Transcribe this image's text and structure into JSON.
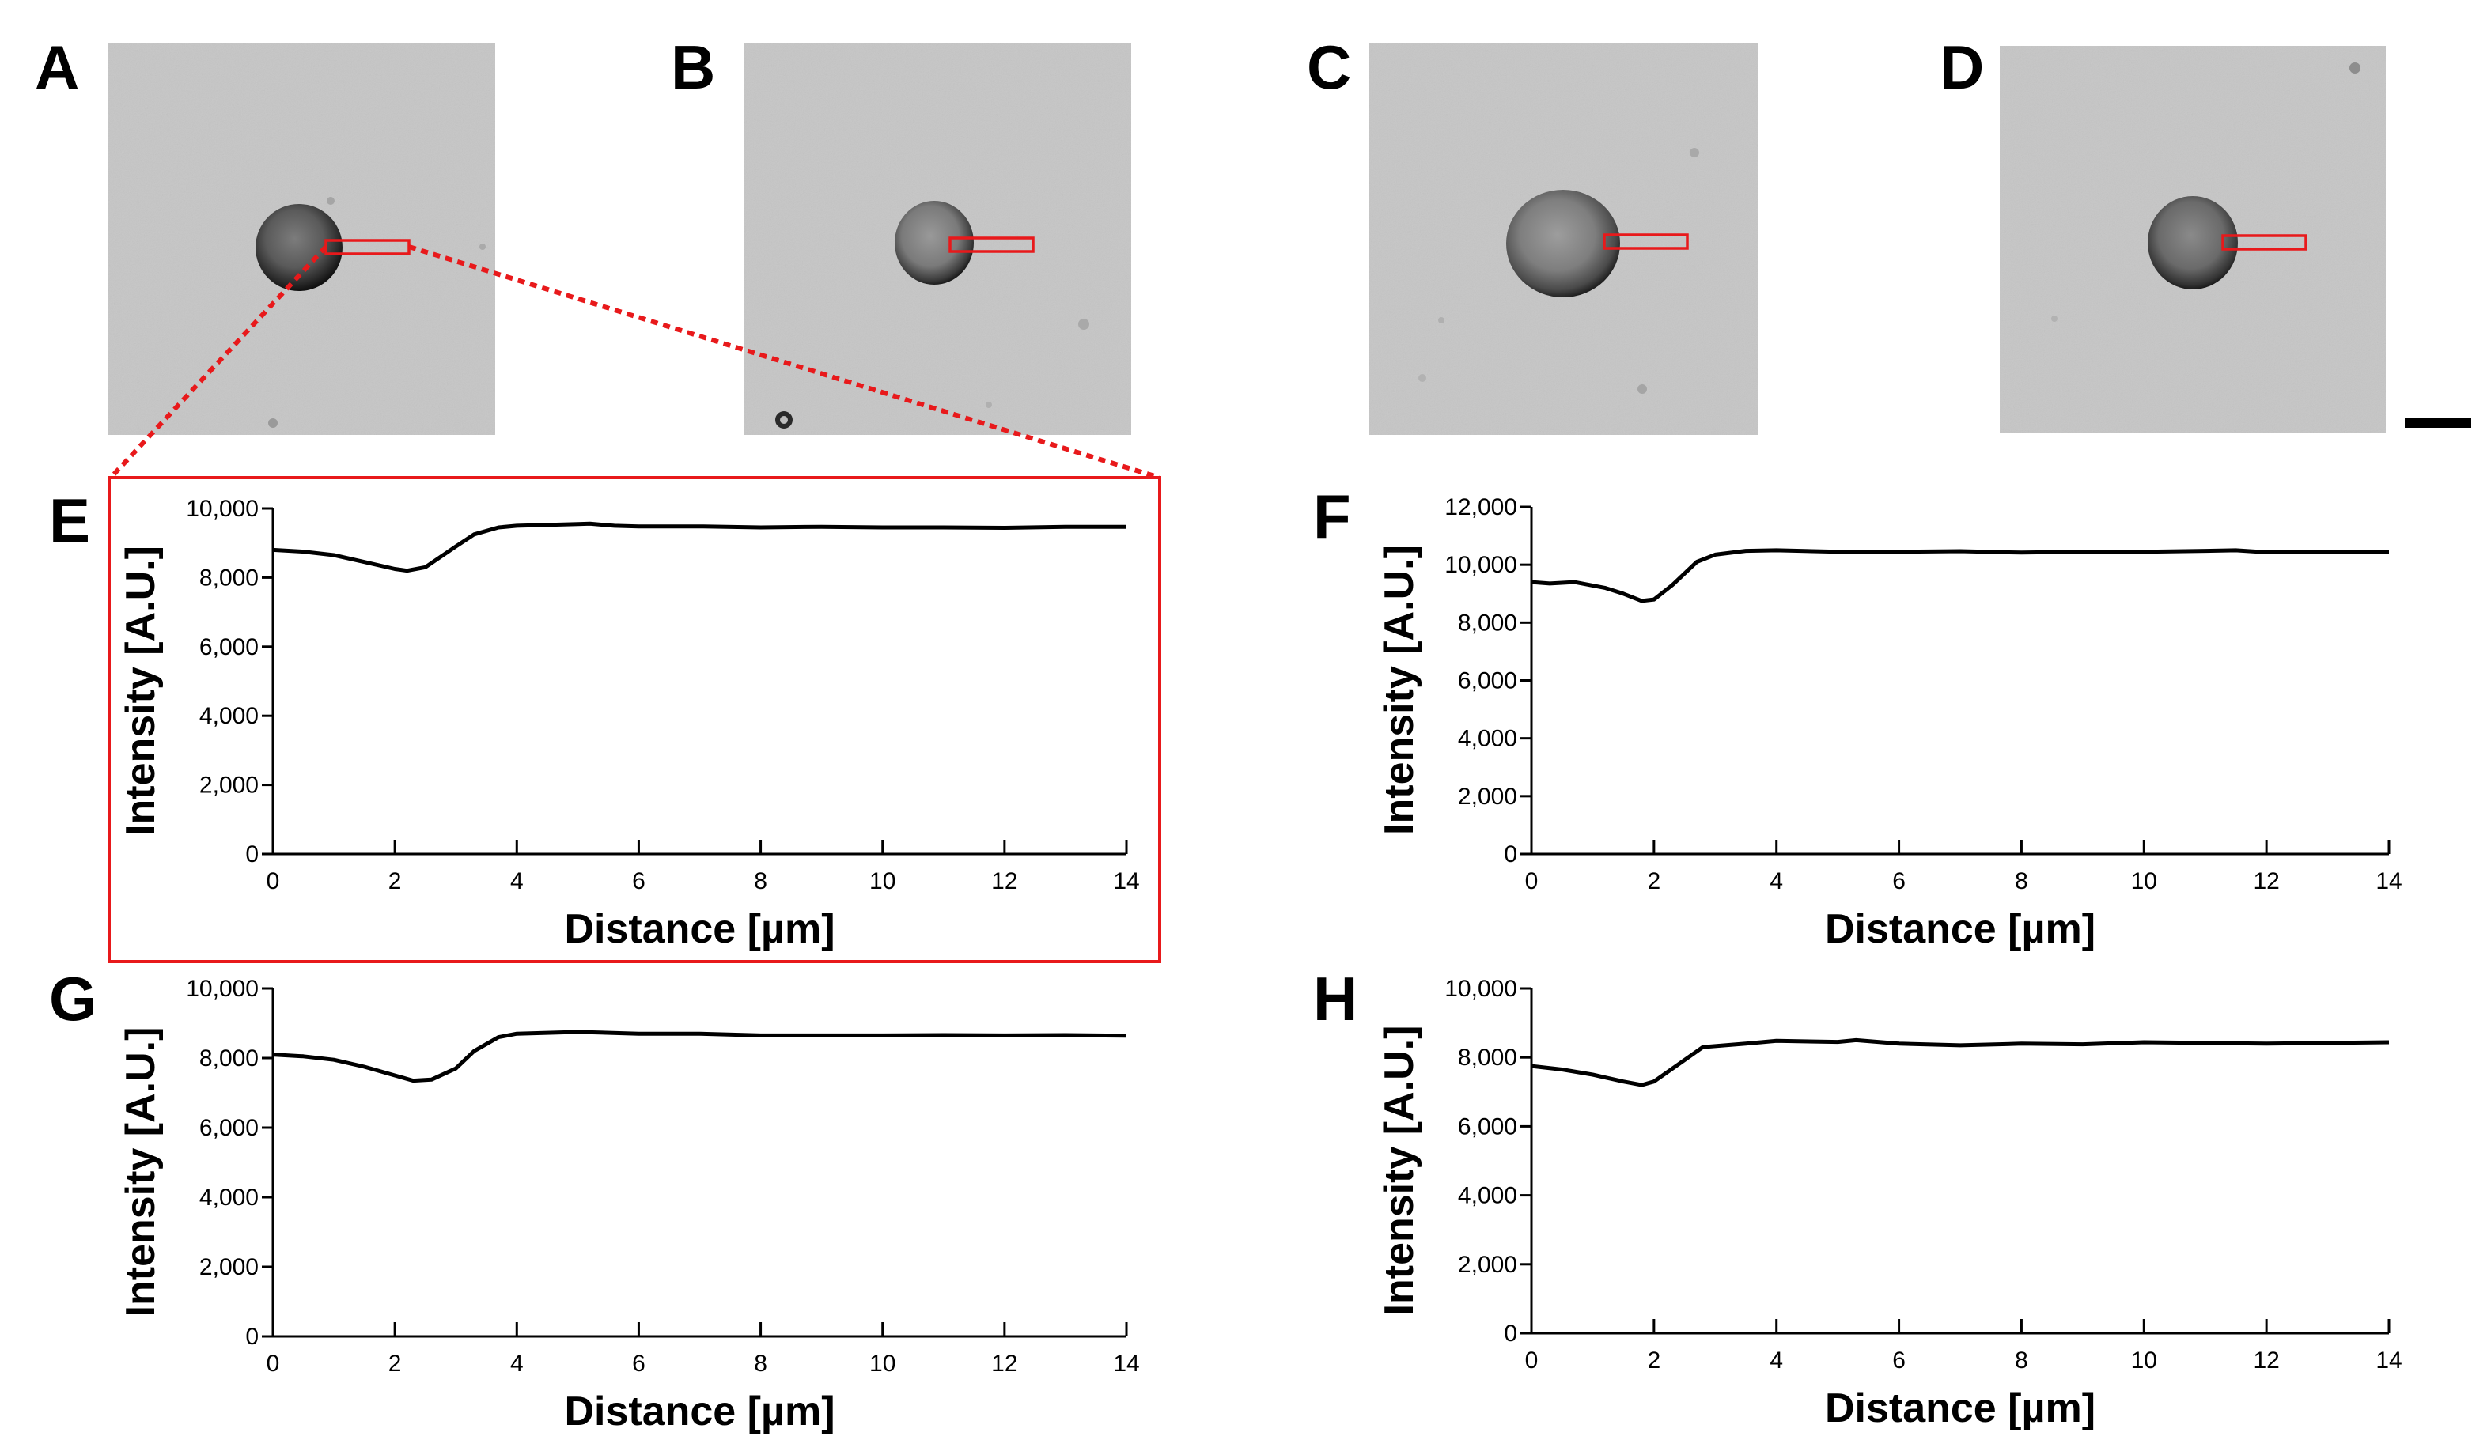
{
  "colors": {
    "highlight": "#e8191b",
    "trace": "#000000",
    "micrograph_bg": "#c9c9c9"
  },
  "micrographs": [
    {
      "letter": "A",
      "description": "bright-field image of single cell with rectangular ROI"
    },
    {
      "letter": "B",
      "description": "bright-field image of single cell with rectangular ROI"
    },
    {
      "letter": "C",
      "description": "bright-field image of single cell with rectangular ROI"
    },
    {
      "letter": "D",
      "description": "bright-field image of single cell with rectangular ROI"
    }
  ],
  "scale_bar": {
    "label": ""
  },
  "chart_data": [
    {
      "panel": "E",
      "type": "line",
      "source": "A",
      "highlighted": true,
      "xlabel": "Distance [µm]",
      "ylabel": "Intensity [A.U.]",
      "xlim": [
        0,
        14
      ],
      "ylim": [
        0,
        10000
      ],
      "xticks": [
        0,
        2,
        4,
        6,
        8,
        10,
        12,
        14
      ],
      "yticks": [
        0,
        2000,
        4000,
        6000,
        8000,
        10000
      ],
      "ytick_labels": [
        "0",
        "2,000",
        "4,000",
        "6,000",
        "8,000",
        "10,000"
      ],
      "series": [
        {
          "name": "profile",
          "x": [
            0,
            0.5,
            1,
            1.5,
            2,
            2.2,
            2.5,
            3,
            3.3,
            3.7,
            4,
            5,
            5.2,
            5.6,
            6,
            7,
            8,
            9,
            10,
            11,
            12,
            13,
            14
          ],
          "y": [
            8800,
            8750,
            8650,
            8450,
            8250,
            8200,
            8300,
            8900,
            9250,
            9450,
            9500,
            9550,
            9560,
            9500,
            9480,
            9480,
            9450,
            9470,
            9450,
            9450,
            9440,
            9470,
            9470
          ]
        }
      ]
    },
    {
      "panel": "F",
      "type": "line",
      "source": "B",
      "highlighted": false,
      "xlabel": "Distance [µm]",
      "ylabel": "Intensity [A.U.]",
      "xlim": [
        0,
        14
      ],
      "ylim": [
        0,
        12000
      ],
      "xticks": [
        0,
        2,
        4,
        6,
        8,
        10,
        12,
        14
      ],
      "yticks": [
        0,
        2000,
        4000,
        6000,
        8000,
        10000,
        12000
      ],
      "ytick_labels": [
        "0",
        "2,000",
        "4,000",
        "6,000",
        "8,000",
        "10,000",
        "12,000"
      ],
      "series": [
        {
          "name": "profile",
          "x": [
            0,
            0.3,
            0.7,
            1.2,
            1.5,
            1.8,
            2,
            2.3,
            2.7,
            3,
            3.5,
            4,
            5,
            6,
            7,
            8,
            9,
            10,
            11,
            11.5,
            12,
            13,
            14
          ],
          "y": [
            9400,
            9350,
            9400,
            9200,
            9000,
            8750,
            8800,
            9300,
            10100,
            10350,
            10480,
            10500,
            10450,
            10450,
            10470,
            10420,
            10450,
            10450,
            10480,
            10500,
            10430,
            10450,
            10450
          ]
        }
      ]
    },
    {
      "panel": "G",
      "type": "line",
      "source": "C",
      "highlighted": false,
      "xlabel": "Distance [µm]",
      "ylabel": "Intensity [A.U.]",
      "xlim": [
        0,
        14
      ],
      "ylim": [
        0,
        10000
      ],
      "xticks": [
        0,
        2,
        4,
        6,
        8,
        10,
        12,
        14
      ],
      "yticks": [
        0,
        2000,
        4000,
        6000,
        8000,
        10000
      ],
      "ytick_labels": [
        "0",
        "2,000",
        "4,000",
        "6,000",
        "8,000",
        "10,000"
      ],
      "series": [
        {
          "name": "profile",
          "x": [
            0,
            0.5,
            1,
            1.5,
            2,
            2.3,
            2.6,
            3,
            3.3,
            3.7,
            4,
            5,
            6,
            7,
            8,
            9,
            10,
            11,
            12,
            13,
            14
          ],
          "y": [
            8100,
            8050,
            7950,
            7750,
            7500,
            7350,
            7380,
            7700,
            8200,
            8600,
            8700,
            8750,
            8700,
            8700,
            8650,
            8650,
            8650,
            8660,
            8650,
            8660,
            8640
          ]
        }
      ]
    },
    {
      "panel": "H",
      "type": "line",
      "source": "D",
      "highlighted": false,
      "xlabel": "Distance [µm]",
      "ylabel": "Intensity [A.U.]",
      "xlim": [
        0,
        14
      ],
      "ylim": [
        0,
        10000
      ],
      "xticks": [
        0,
        2,
        4,
        6,
        8,
        10,
        12,
        14
      ],
      "yticks": [
        0,
        2000,
        4000,
        6000,
        8000,
        10000
      ],
      "ytick_labels": [
        "0",
        "2,000",
        "4,000",
        "6,000",
        "8,000",
        "10,000"
      ],
      "series": [
        {
          "name": "profile",
          "x": [
            0,
            0.5,
            1,
            1.5,
            1.8,
            2,
            2.4,
            2.8,
            3.5,
            4,
            5,
            5.3,
            6,
            7,
            8,
            9,
            10,
            11,
            12,
            13,
            14
          ],
          "y": [
            7750,
            7650,
            7500,
            7300,
            7200,
            7300,
            7800,
            8300,
            8400,
            8480,
            8450,
            8500,
            8400,
            8350,
            8400,
            8380,
            8440,
            8420,
            8400,
            8420,
            8440
          ]
        }
      ]
    }
  ]
}
